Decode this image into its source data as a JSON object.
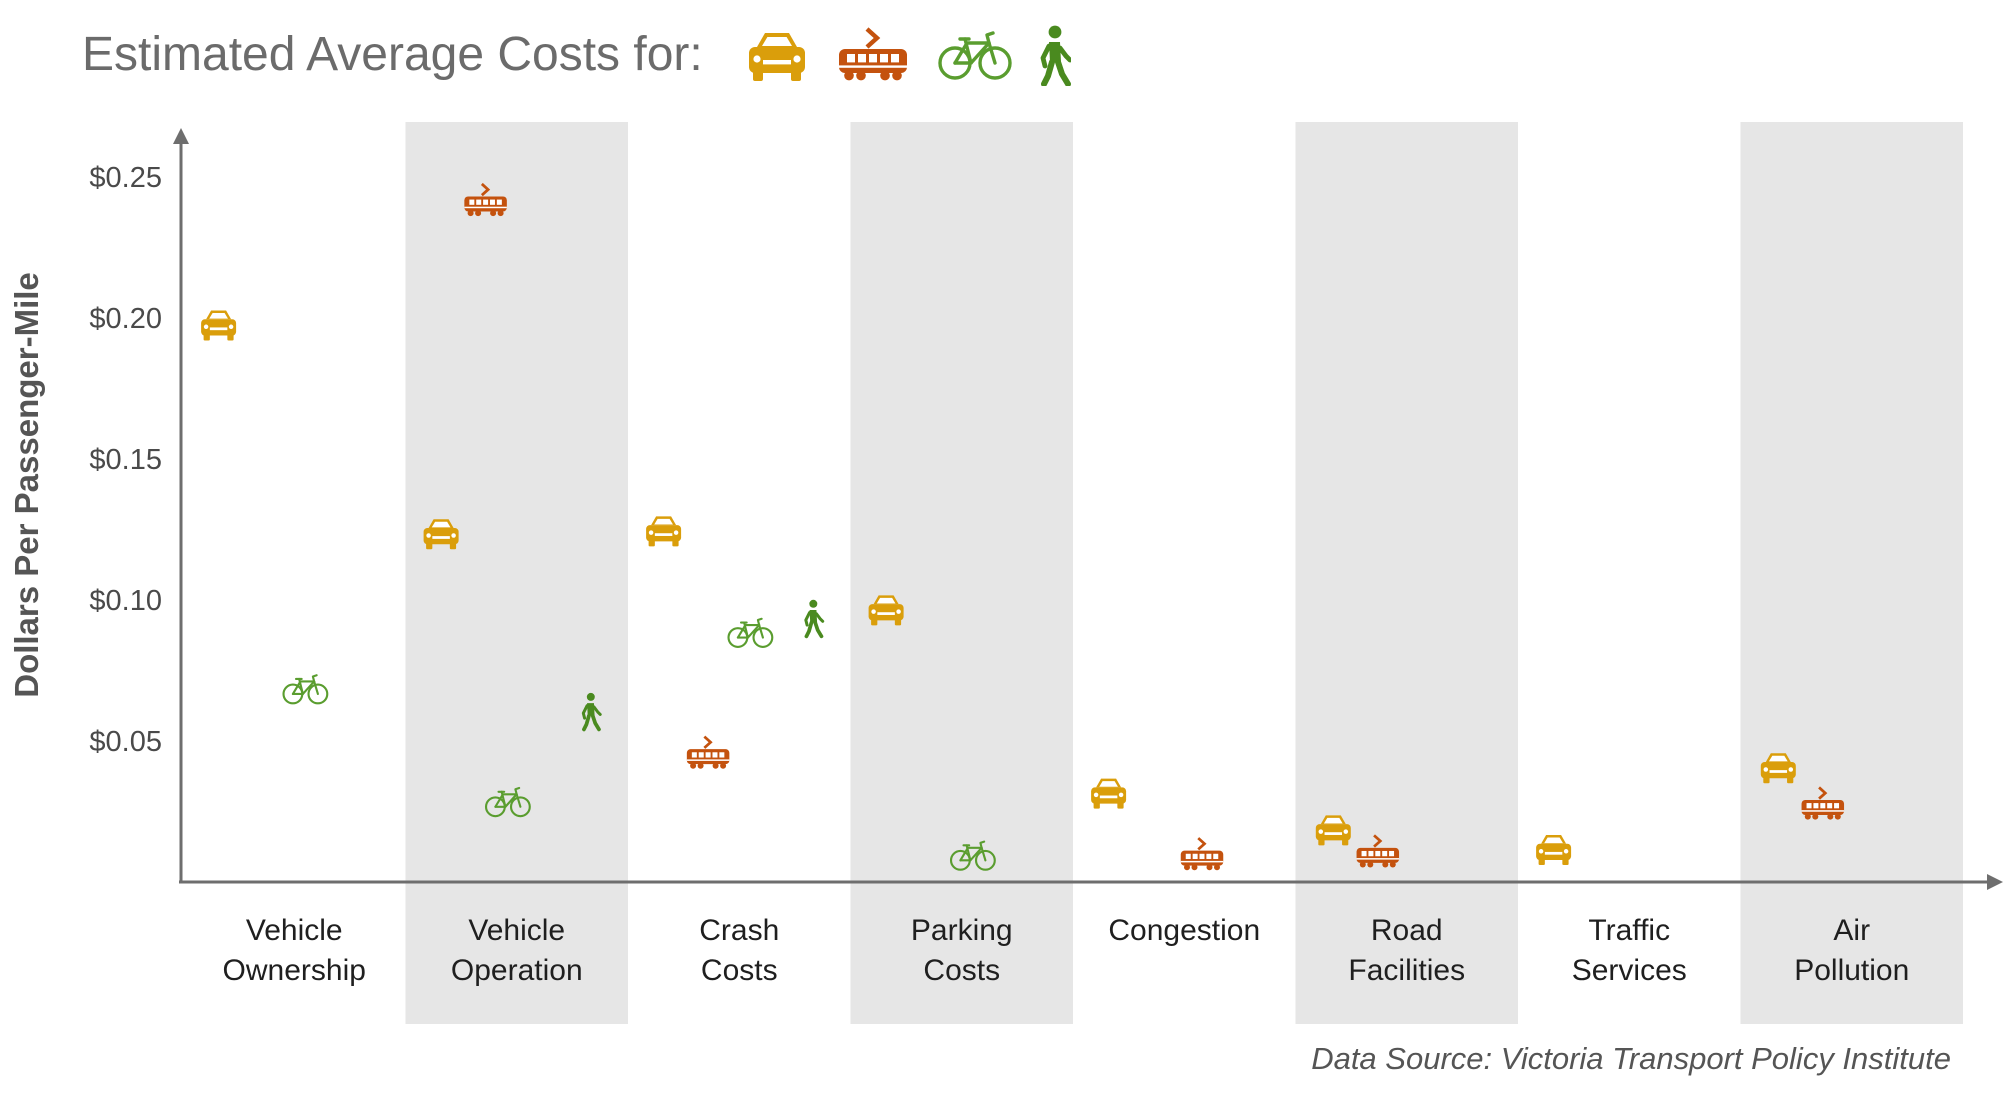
{
  "header": {
    "title": "Estimated Average Costs for:"
  },
  "icons": {
    "car": "car-icon",
    "streetcar": "streetcar-icon",
    "bicycle": "bicycle-icon",
    "pedestrian": "pedestrian-icon"
  },
  "colors": {
    "car": "#DA9E0B",
    "streetcar": "#C4520E",
    "bicycle": "#5A9D2F",
    "pedestrian": "#4A8A1F",
    "band": "#E6E6E6",
    "axis": "#6E6E6E"
  },
  "footer": {
    "source": "Data Source: Victoria Transport Policy Institute"
  },
  "chart_data": {
    "type": "scatter",
    "ylabel": "Dollars Per Passenger-Mile",
    "xlabel": "",
    "ylim": [
      0,
      0.27
    ],
    "yticks": [
      "$0.05",
      "$0.10",
      "$0.15",
      "$0.20",
      "$0.25"
    ],
    "ytick_values": [
      0.05,
      0.1,
      0.15,
      0.2,
      0.25
    ],
    "grid": false,
    "categories": [
      {
        "lines": [
          "Vehicle",
          "Ownership"
        ],
        "shaded": false
      },
      {
        "lines": [
          "Vehicle",
          "Operation"
        ],
        "shaded": true
      },
      {
        "lines": [
          "Crash",
          "Costs"
        ],
        "shaded": false
      },
      {
        "lines": [
          "Parking",
          "Costs"
        ],
        "shaded": true
      },
      {
        "lines": [
          "Congestion"
        ],
        "shaded": false
      },
      {
        "lines": [
          "Road",
          "Facilities"
        ],
        "shaded": true
      },
      {
        "lines": [
          "Traffic",
          "Services"
        ],
        "shaded": false
      },
      {
        "lines": [
          "Air",
          "Pollution"
        ],
        "shaded": true
      }
    ],
    "points": [
      {
        "category": 0,
        "mode": "car",
        "value": 0.196
      },
      {
        "category": 0,
        "mode": "bicycle",
        "value": 0.068
      },
      {
        "category": 1,
        "mode": "streetcar",
        "value": 0.24
      },
      {
        "category": 1,
        "mode": "car",
        "value": 0.122
      },
      {
        "category": 1,
        "mode": "pedestrian",
        "value": 0.055
      },
      {
        "category": 1,
        "mode": "bicycle",
        "value": 0.028
      },
      {
        "category": 2,
        "mode": "car",
        "value": 0.123
      },
      {
        "category": 2,
        "mode": "bicycle",
        "value": 0.088
      },
      {
        "category": 2,
        "mode": "pedestrian",
        "value": 0.088
      },
      {
        "category": 2,
        "mode": "streetcar",
        "value": 0.044
      },
      {
        "category": 3,
        "mode": "car",
        "value": 0.095
      },
      {
        "category": 3,
        "mode": "bicycle",
        "value": 0.009
      },
      {
        "category": 4,
        "mode": "car",
        "value": 0.03
      },
      {
        "category": 4,
        "mode": "streetcar",
        "value": 0.008
      },
      {
        "category": 5,
        "mode": "car",
        "value": 0.017
      },
      {
        "category": 5,
        "mode": "streetcar",
        "value": 0.009
      },
      {
        "category": 6,
        "mode": "car",
        "value": 0.01
      },
      {
        "category": 7,
        "mode": "car",
        "value": 0.039
      },
      {
        "category": 7,
        "mode": "streetcar",
        "value": 0.026
      }
    ]
  }
}
